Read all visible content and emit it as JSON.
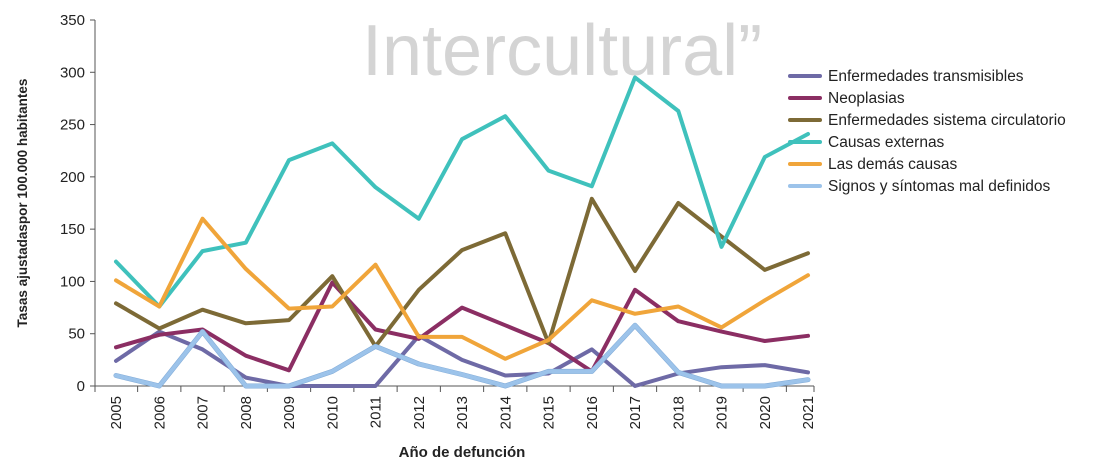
{
  "chart_data": {
    "type": "line",
    "title": "",
    "watermark": "Intercultural”",
    "xlabel": "Año de defunción",
    "ylabel": "Tasas ajustadaspor 100.000 habitantes",
    "ylim": [
      0,
      350
    ],
    "yticks": [
      0,
      50,
      100,
      150,
      200,
      250,
      300,
      350
    ],
    "categories": [
      "2005",
      "2006",
      "2007",
      "2008",
      "2009",
      "2010",
      "2011",
      "2012",
      "2013",
      "2014",
      "2015",
      "2016",
      "2017",
      "2018",
      "2019",
      "2020",
      "2021"
    ],
    "legend_position": "right",
    "grid": false,
    "series": [
      {
        "name": "Enfermedades transmisibles",
        "color": "#6e6aa6",
        "values": [
          24,
          52,
          35,
          8,
          0,
          0,
          0,
          48,
          25,
          10,
          12,
          35,
          0,
          12,
          18,
          20,
          13
        ]
      },
      {
        "name": "Neoplasias",
        "color": "#8b2e63",
        "values": [
          37,
          49,
          54,
          29,
          15,
          99,
          54,
          45,
          75,
          58,
          41,
          14,
          92,
          62,
          52,
          43,
          48
        ]
      },
      {
        "name": "Enfermedades sistema circulatorio",
        "color": "#7d6a36",
        "values": [
          79,
          55,
          73,
          60,
          63,
          105,
          38,
          92,
          130,
          146,
          41,
          179,
          110,
          175,
          143,
          111,
          127
        ]
      },
      {
        "name": "Causas externas",
        "color": "#3fc1bc",
        "values": [
          119,
          76,
          129,
          137,
          216,
          232,
          190,
          160,
          236,
          258,
          206,
          191,
          295,
          263,
          133,
          219,
          241
        ]
      },
      {
        "name": "Las demás causas",
        "color": "#f0a53a",
        "values": [
          101,
          76,
          160,
          112,
          74,
          76,
          116,
          47,
          47,
          26,
          44,
          82,
          69,
          76,
          56,
          82,
          106
        ]
      },
      {
        "name": "Signos y síntomas mal definidos",
        "color": "#9cc3ea",
        "values": [
          10,
          0,
          52,
          0,
          0,
          14,
          38,
          21,
          11,
          0,
          14,
          14,
          58,
          13,
          0,
          0,
          6
        ]
      }
    ]
  }
}
